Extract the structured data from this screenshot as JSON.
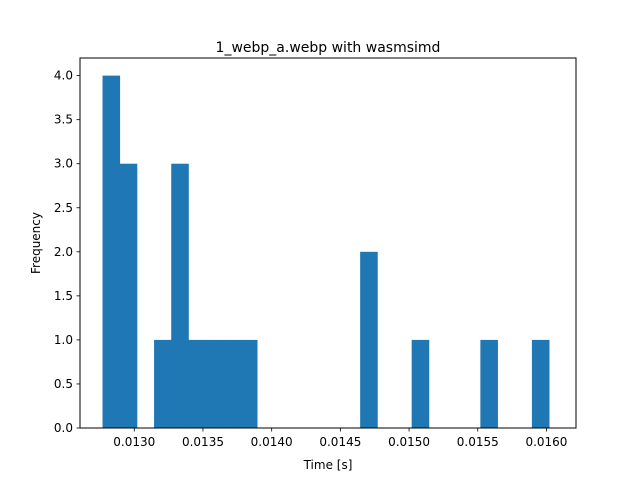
{
  "chart_data": {
    "type": "bar",
    "subtype": "histogram",
    "title": "1_webp_a.webp with wasmsimd",
    "xlabel": "Time [s]",
    "ylabel": "Frequency",
    "bar_color": "#1f77b4",
    "xlim": [
      0.012605,
      0.016215
    ],
    "ylim": [
      0,
      4.2
    ],
    "xticks": [
      "0.0130",
      "0.0135",
      "0.0140",
      "0.0145",
      "0.0150",
      "0.0155",
      "0.0160"
    ],
    "xtick_values": [
      0.013,
      0.0135,
      0.014,
      0.0145,
      0.015,
      0.0155,
      0.016
    ],
    "yticks": [
      "0.0",
      "0.5",
      "1.0",
      "1.5",
      "2.0",
      "2.5",
      "3.0",
      "3.5",
      "4.0"
    ],
    "ytick_values": [
      0,
      0.5,
      1.0,
      1.5,
      2.0,
      2.5,
      3.0,
      3.5,
      4.0
    ],
    "bin_edges": [
      0.012769,
      0.012894,
      0.013019,
      0.013144,
      0.013269,
      0.013394,
      0.013519,
      0.013644,
      0.013769,
      0.013894,
      0.014019,
      0.014144,
      0.014269,
      0.014394,
      0.014519,
      0.014644,
      0.014769,
      0.014894,
      0.015019,
      0.015144,
      0.015269,
      0.015394,
      0.015519,
      0.015644,
      0.015769,
      0.015894,
      0.016019
    ],
    "counts": [
      4,
      3,
      0,
      1,
      3,
      1,
      1,
      1,
      1,
      0,
      0,
      0,
      0,
      0,
      0,
      2,
      0,
      0,
      1,
      0,
      0,
      0,
      1,
      0,
      0,
      1
    ],
    "grid": false
  }
}
